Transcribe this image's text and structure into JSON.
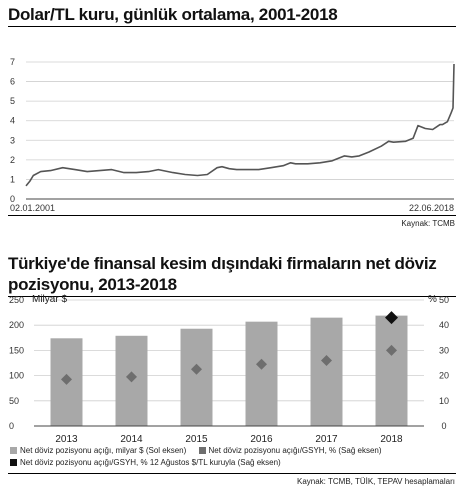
{
  "chart_data": [
    {
      "type": "line",
      "title": "Dolar/TL kuru, günlük ortalama, 2001-2018",
      "source": "Kaynak: TCMB",
      "ylim": [
        0,
        7
      ],
      "yticks": [
        "0",
        "1",
        "2",
        "3",
        "4",
        "5",
        "6",
        "7"
      ],
      "x_start_label": "02.01.2001",
      "x_end_label": "22.06.2018",
      "grid": true,
      "series": [
        {
          "color": "#555555",
          "x": [
            2001.0,
            2001.15,
            2001.3,
            2001.6,
            2002.0,
            2002.5,
            2003.0,
            2003.5,
            2004.0,
            2004.5,
            2005.0,
            2005.5,
            2006.0,
            2006.4,
            2006.6,
            2007.0,
            2007.5,
            2008.0,
            2008.4,
            2008.8,
            2009.0,
            2009.3,
            2009.6,
            2010.0,
            2010.5,
            2011.0,
            2011.5,
            2011.8,
            2012.0,
            2012.5,
            2013.0,
            2013.5,
            2014.0,
            2014.3,
            2014.6,
            2015.0,
            2015.5,
            2015.8,
            2016.0,
            2016.5,
            2016.8,
            2017.0,
            2017.3,
            2017.6,
            2017.9,
            2018.0,
            2018.2,
            2018.35,
            2018.43,
            2018.47
          ],
          "y": [
            0.67,
            0.9,
            1.2,
            1.4,
            1.45,
            1.6,
            1.5,
            1.4,
            1.45,
            1.5,
            1.35,
            1.35,
            1.4,
            1.5,
            1.45,
            1.35,
            1.25,
            1.2,
            1.25,
            1.6,
            1.65,
            1.55,
            1.5,
            1.5,
            1.5,
            1.6,
            1.7,
            1.85,
            1.8,
            1.8,
            1.85,
            1.95,
            2.2,
            2.15,
            2.2,
            2.4,
            2.7,
            2.95,
            2.9,
            2.95,
            3.1,
            3.75,
            3.6,
            3.55,
            3.8,
            3.8,
            3.95,
            4.4,
            4.65,
            6.9
          ]
        }
      ]
    },
    {
      "type": "bar",
      "title": "Türkiye'de finansal kesim dışındaki firmaların net döviz pozisyonu, 2013-2018",
      "source": "Kaynak: TCMB, TÜİK, TEPAV hesaplamaları",
      "categories": [
        "2013",
        "2014",
        "2015",
        "2016",
        "2017",
        "2018"
      ],
      "left_axis_label": "Milyar $",
      "right_axis_label": "%",
      "ylim_left": [
        0,
        250
      ],
      "ylim_right": [
        0,
        50
      ],
      "left_ticks": [
        "0",
        "50",
        "100",
        "150",
        "200",
        "250"
      ],
      "right_ticks": [
        "0",
        "10",
        "20",
        "30",
        "40",
        "50"
      ],
      "series": [
        {
          "name": "Net döviz pozisyonu açığı, milyar $ (Sol eksen)",
          "type": "bar",
          "axis": "left",
          "color": "#a8a8a8",
          "values": [
            174,
            179,
            193,
            207,
            215,
            219
          ]
        },
        {
          "name": "Net döviz pozisyonu açığı/GSYH, % (Sağ eksen)",
          "type": "marker",
          "axis": "right",
          "color": "#6e6e6e",
          "values": [
            18.5,
            19.5,
            22.5,
            24.5,
            26,
            30
          ]
        },
        {
          "name": "Net döviz pozisyonu açığı/GSYH, % 12 Ağustos $/TL kuruyla (Sağ eksen)",
          "type": "marker",
          "axis": "right",
          "color": "#111111",
          "values": [
            null,
            null,
            null,
            null,
            null,
            43
          ]
        }
      ]
    }
  ]
}
